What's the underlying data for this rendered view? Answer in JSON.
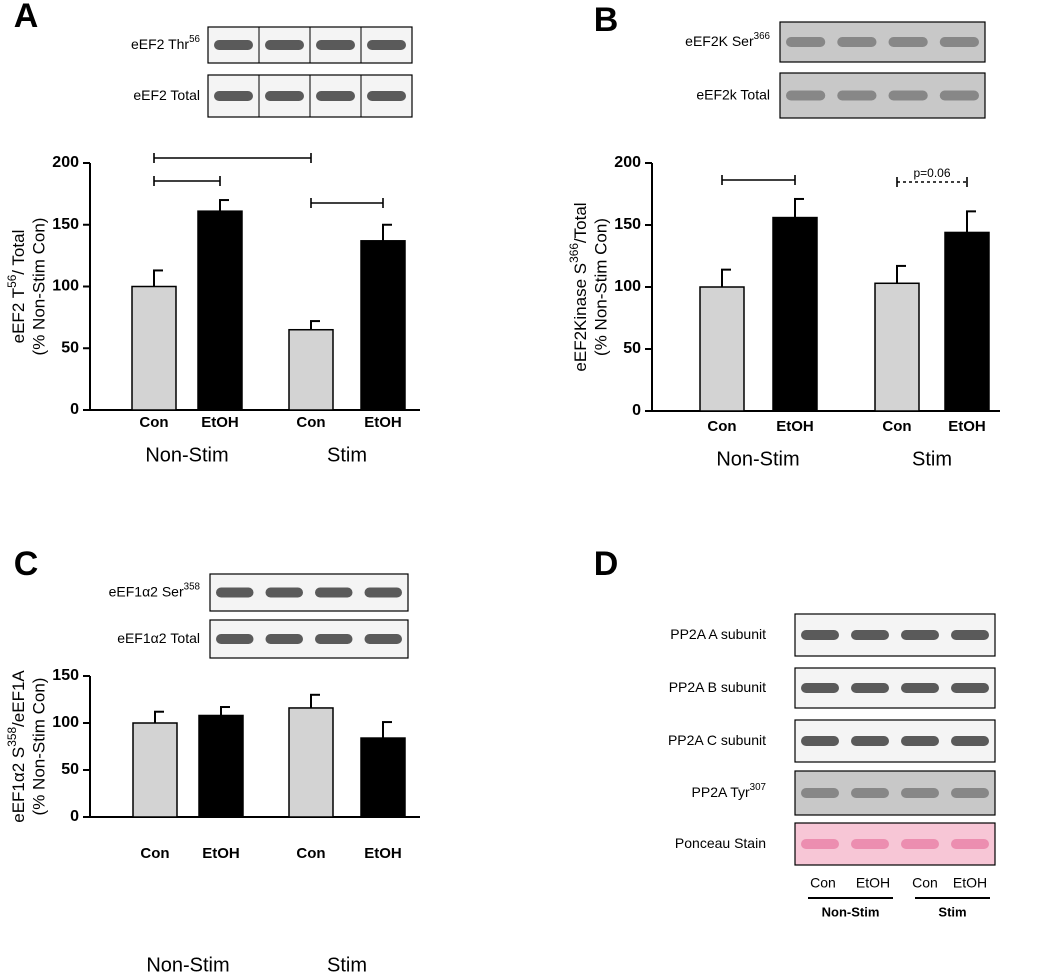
{
  "chart_data": [
    {
      "type": "bar",
      "panel": "A",
      "blots": [
        [
          "eEF2 Thr",
          "56"
        ],
        [
          "eEF2 Total"
        ]
      ],
      "categories": [
        "Con",
        "EtOH",
        "Con",
        "EtOH"
      ],
      "groups": [
        "Non-Stim",
        "Stim"
      ],
      "ylabel": [
        "eEF2 T",
        "56",
        "/ Total"
      ],
      "ylabel2": "(% Non-Stim Con)",
      "values": [
        100,
        161,
        65,
        137
      ],
      "errors": [
        13,
        9,
        7,
        13
      ],
      "colors": [
        "#d3d3d3",
        "#000000",
        "#d3d3d3",
        "#000000"
      ],
      "ylim": [
        0,
        200
      ],
      "yticks": [
        0,
        50,
        100,
        150,
        200
      ]
    },
    {
      "type": "bar",
      "panel": "B",
      "blots": [
        [
          "eEF2K Ser",
          "366"
        ],
        [
          "eEF2k Total"
        ]
      ],
      "categories": [
        "Con",
        "EtOH",
        "Con",
        "EtOH"
      ],
      "groups": [
        "Non-Stim",
        "Stim"
      ],
      "ylabel": [
        "eEF2Kinase S",
        "366",
        "/Total"
      ],
      "ylabel2": "(% Non-Stim Con)",
      "values": [
        100,
        156,
        103,
        144
      ],
      "errors": [
        14,
        15,
        14,
        17
      ],
      "colors": [
        "#d3d3d3",
        "#000000",
        "#d3d3d3",
        "#000000"
      ],
      "annotation": "p=0.06",
      "ylim": [
        0,
        200
      ],
      "yticks": [
        0,
        50,
        100,
        150,
        200
      ]
    },
    {
      "type": "bar",
      "panel": "C",
      "blots": [
        [
          "eEF1α2 Ser",
          "358"
        ],
        [
          "eEF1α2 Total"
        ]
      ],
      "categories": [
        "Con",
        "EtOH",
        "Con",
        "EtOH"
      ],
      "groups": [
        "Non-Stim",
        "Stim"
      ],
      "ylabel": [
        "eEF1α2 S",
        "358",
        "/eEF1A"
      ],
      "ylabel2": "(% Non-Stim Con)",
      "values": [
        100,
        108,
        116,
        84
      ],
      "errors": [
        12,
        9,
        14,
        17
      ],
      "colors": [
        "#d3d3d3",
        "#000000",
        "#d3d3d3",
        "#000000"
      ],
      "ylim": [
        0,
        150
      ],
      "yticks": [
        0,
        50,
        100,
        150
      ]
    }
  ],
  "blot_panel": {
    "panel": "D",
    "rows": [
      [
        "PP2A A subunit"
      ],
      [
        "PP2A B subunit"
      ],
      [
        "PP2A C subunit"
      ],
      [
        "PP2A Tyr",
        "307"
      ],
      [
        "Ponceau Stain"
      ]
    ],
    "lanes": [
      "Con",
      "EtOH",
      "Con",
      "EtOH"
    ],
    "groups": [
      "Non-Stim",
      "Stim"
    ]
  }
}
